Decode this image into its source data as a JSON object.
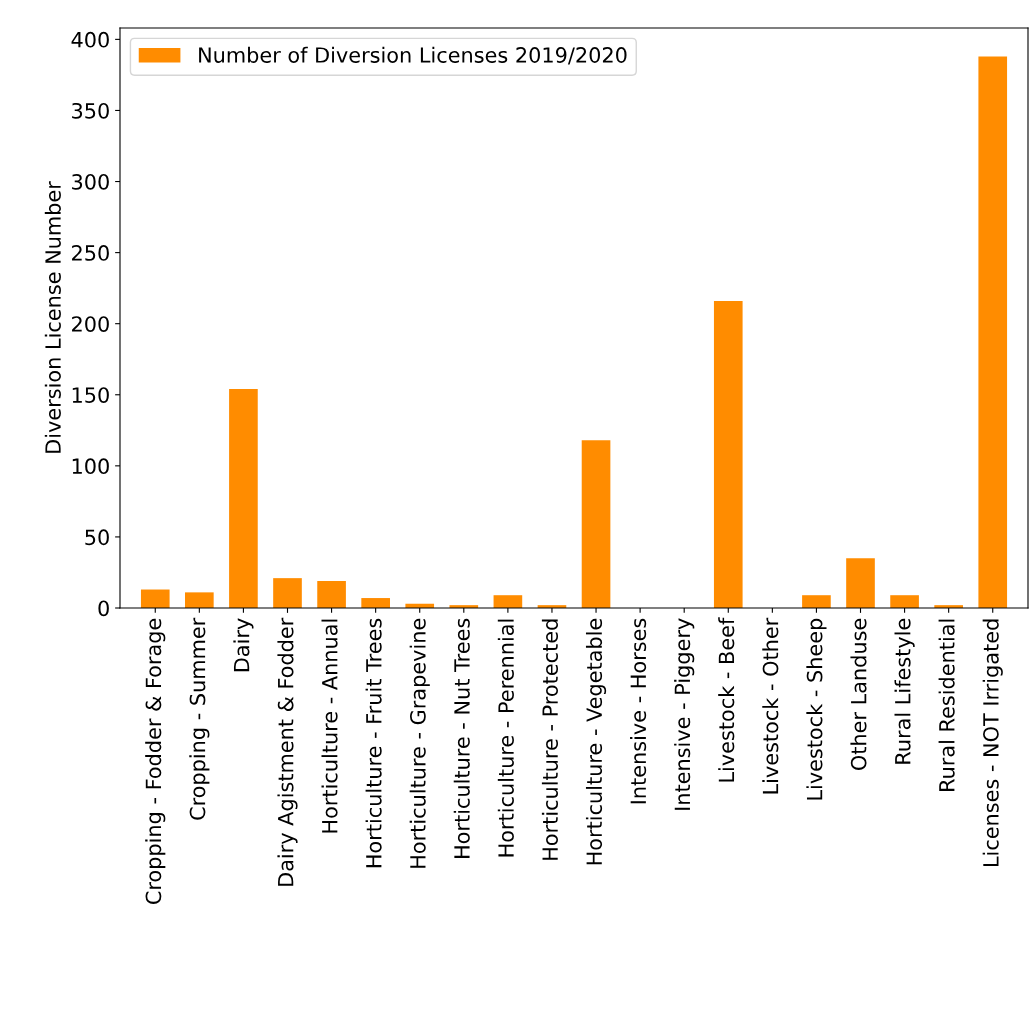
{
  "chart_data": {
    "type": "bar",
    "ylabel": "Diversion License Number",
    "categories": [
      "Cropping - Fodder & Forage",
      "Cropping - Summer",
      "Dairy",
      "Dairy Agistment & Fodder",
      "Horticulture - Annual",
      "Horticulture - Fruit Trees",
      "Horticulture - Grapevine",
      "Horticulture - Nut Trees",
      "Horticulture - Perennial",
      "Horticulture - Protected",
      "Horticulture - Vegetable",
      "Intensive - Horses",
      "Intensive - Piggery",
      "Livestock - Beef",
      "Livestock - Other",
      "Livestock - Sheep",
      "Other Landuse",
      "Rural Lifestyle",
      "Rural Residential",
      "Licenses - NOT Irrigated"
    ],
    "series": [
      {
        "name": "Number of Diversion Licenses 2019/2020",
        "color": "#ff8c00",
        "values": [
          13,
          11,
          154,
          21,
          19,
          7,
          3,
          2,
          9,
          2,
          118,
          0,
          0,
          216,
          0,
          9,
          35,
          9,
          2,
          388
        ]
      }
    ],
    "ylim": [
      0,
      408
    ],
    "yticks": [
      0,
      50,
      100,
      150,
      200,
      250,
      300,
      350,
      400
    ],
    "grid": false,
    "legend": "top left"
  }
}
